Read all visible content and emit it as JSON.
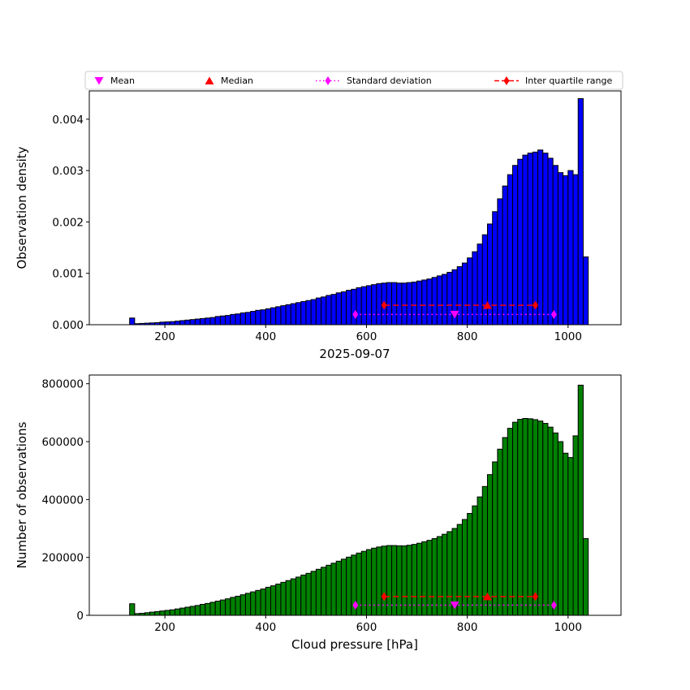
{
  "figure": {
    "background": "#ffffff"
  },
  "legend": {
    "items": [
      {
        "label": "Mean",
        "marker": "triangle-down-icon",
        "color": "#ff00ff"
      },
      {
        "label": "Median",
        "marker": "triangle-up-icon",
        "color": "#ff0000"
      },
      {
        "label": "Standard deviation",
        "marker": "thin-diamond-dotted-line-icon",
        "color": "#ff00ff"
      },
      {
        "label": "Inter quartile range",
        "marker": "thin-diamond-dashed-line-icon",
        "color": "#ff0000"
      }
    ]
  },
  "chart_data": [
    {
      "type": "bar",
      "title": "",
      "xlabel": "2025-09-07",
      "ylabel": "Observation density",
      "bar_color": "#0000ff",
      "bar_edge_color": "#000000",
      "bin_start": 120,
      "bin_width": 10,
      "xlim": [
        50,
        1105
      ],
      "ylim": [
        0,
        0.00455
      ],
      "xticks": [
        200,
        400,
        600,
        800,
        1000
      ],
      "xtick_labels": [
        "200",
        "400",
        "600",
        "800",
        "1000"
      ],
      "yticks": [
        0,
        0.001,
        0.002,
        0.003,
        0.004
      ],
      "ytick_labels": [
        "0.000",
        "0.001",
        "0.002",
        "0.003",
        "0.004"
      ],
      "grid": false,
      "legend_position": "above-top-center",
      "values": [
        0.0,
        0.00013,
        2e-05,
        2.5e-05,
        3e-05,
        3.5e-05,
        4e-05,
        5e-05,
        5.5e-05,
        6e-05,
        7e-05,
        8e-05,
        9e-05,
        0.0001,
        0.00011,
        0.00012,
        0.00013,
        0.00014,
        0.00016,
        0.00017,
        0.00018,
        0.0002,
        0.00021,
        0.00023,
        0.00024,
        0.00026,
        0.00028,
        0.00029,
        0.00031,
        0.00033,
        0.00035,
        0.00037,
        0.00039,
        0.00041,
        0.00043,
        0.00045,
        0.00047,
        0.00049,
        0.00052,
        0.00054,
        0.00057,
        0.00059,
        0.00062,
        0.00064,
        0.00067,
        0.00069,
        0.00072,
        0.00074,
        0.00076,
        0.00078,
        0.0008,
        0.00081,
        0.00082,
        0.00082,
        0.00081,
        0.00081,
        0.00082,
        0.00083,
        0.00085,
        0.00087,
        0.00089,
        0.00092,
        0.00095,
        0.00098,
        0.00102,
        0.00107,
        0.00113,
        0.0012,
        0.0013,
        0.00142,
        0.00157,
        0.00175,
        0.00196,
        0.0022,
        0.00245,
        0.0027,
        0.00292,
        0.0031,
        0.00322,
        0.0033,
        0.00334,
        0.00336,
        0.0034,
        0.00334,
        0.00324,
        0.0031,
        0.00296,
        0.0029,
        0.003,
        0.00292,
        0.0044,
        0.00132
      ],
      "markers": {
        "mean": {
          "x": 775,
          "y": 0.0002,
          "color": "#ff00ff"
        },
        "median": {
          "x": 840,
          "y": 0.00038,
          "color": "#ff0000"
        },
        "std_range": {
          "x1": 578,
          "x2": 972,
          "y": 0.0002,
          "color": "#ff00ff",
          "style": "dotted"
        },
        "iqr_range": {
          "x1": 635,
          "x2": 935,
          "y": 0.00038,
          "color": "#ff0000",
          "style": "dashed"
        }
      }
    },
    {
      "type": "bar",
      "title": "",
      "xlabel": "Cloud pressure [hPa]",
      "ylabel": "Number of observations",
      "bar_color": "#008000",
      "bar_edge_color": "#000000",
      "bin_start": 120,
      "bin_width": 10,
      "xlim": [
        50,
        1105
      ],
      "ylim": [
        0,
        830000
      ],
      "xticks": [
        200,
        400,
        600,
        800,
        1000
      ],
      "xtick_labels": [
        "200",
        "400",
        "600",
        "800",
        "1000"
      ],
      "yticks": [
        0,
        200000,
        400000,
        600000,
        800000
      ],
      "ytick_labels": [
        "0",
        "200000",
        "400000",
        "600000",
        "800000"
      ],
      "grid": false,
      "values": [
        0,
        40000,
        6000,
        7000,
        9000,
        11000,
        13000,
        15000,
        17000,
        19000,
        22000,
        25000,
        28000,
        31000,
        34000,
        38000,
        41000,
        45000,
        49000,
        53000,
        57000,
        62000,
        66000,
        71000,
        76000,
        81000,
        86000,
        91000,
        97000,
        102000,
        108000,
        114000,
        120000,
        126000,
        132000,
        139000,
        145000,
        152000,
        159000,
        166000,
        173000,
        180000,
        187000,
        194000,
        201000,
        208000,
        215000,
        221000,
        227000,
        232000,
        236000,
        239000,
        241000,
        241000,
        240000,
        240000,
        242000,
        245000,
        249000,
        254000,
        259000,
        265000,
        272000,
        280000,
        289000,
        300000,
        314000,
        331000,
        352000,
        378000,
        409000,
        445000,
        486000,
        530000,
        574000,
        614000,
        646000,
        667000,
        677000,
        680000,
        679000,
        676000,
        671000,
        663000,
        650000,
        630000,
        600000,
        560000,
        545000,
        620000,
        795000,
        265000
      ],
      "markers": {
        "mean": {
          "x": 775,
          "y": 35000,
          "color": "#ff00ff"
        },
        "median": {
          "x": 840,
          "y": 65000,
          "color": "#ff0000"
        },
        "std_range": {
          "x1": 578,
          "x2": 972,
          "y": 35000,
          "color": "#ff00ff",
          "style": "dotted"
        },
        "iqr_range": {
          "x1": 635,
          "x2": 935,
          "y": 65000,
          "color": "#ff0000",
          "style": "dashed"
        }
      }
    }
  ]
}
